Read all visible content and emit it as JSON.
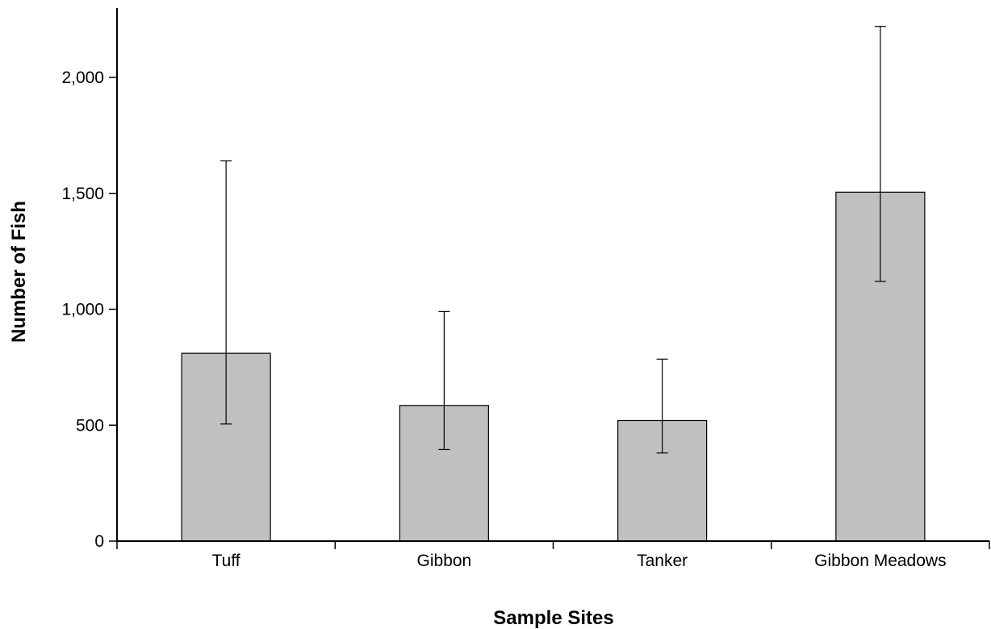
{
  "chart_data": {
    "type": "bar",
    "categories": [
      "Tuff",
      "Gibbon",
      "Tanker",
      "Gibbon Meadows"
    ],
    "values": [
      810,
      585,
      520,
      1505
    ],
    "error_low": [
      505,
      395,
      380,
      1120
    ],
    "error_high": [
      1640,
      990,
      785,
      2220
    ],
    "xlabel": "Sample Sites",
    "ylabel": "Number of Fish",
    "ylim": [
      0,
      2300
    ],
    "yticks": [
      0,
      500,
      1000,
      1500,
      2000
    ],
    "ytick_labels": [
      "0",
      "500",
      "1,000",
      "1,500",
      "2,000"
    ],
    "grid": false,
    "colors": {
      "bar_fill": "#c0c0c0",
      "bar_stroke": "#000000",
      "axis": "#000000"
    }
  }
}
